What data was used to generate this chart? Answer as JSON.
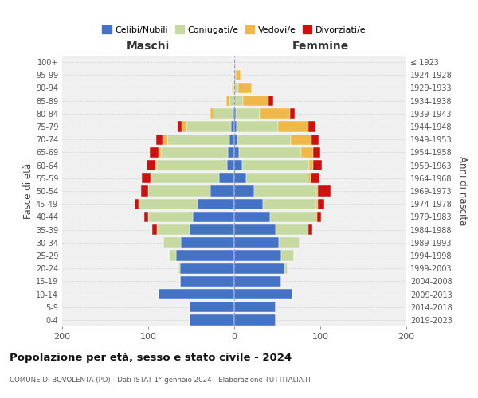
{
  "age_groups": [
    "0-4",
    "5-9",
    "10-14",
    "15-19",
    "20-24",
    "25-29",
    "30-34",
    "35-39",
    "40-44",
    "45-49",
    "50-54",
    "55-59",
    "60-64",
    "65-69",
    "70-74",
    "75-79",
    "80-84",
    "85-89",
    "90-94",
    "95-99",
    "100+"
  ],
  "birth_years": [
    "2019-2023",
    "2014-2018",
    "2009-2013",
    "2004-2008",
    "1999-2003",
    "1994-1998",
    "1989-1993",
    "1984-1988",
    "1979-1983",
    "1974-1978",
    "1969-1973",
    "1964-1968",
    "1959-1963",
    "1954-1958",
    "1949-1953",
    "1944-1948",
    "1939-1943",
    "1934-1938",
    "1929-1933",
    "1924-1928",
    "≤ 1923"
  ],
  "males": {
    "celibi": [
      52,
      52,
      88,
      63,
      63,
      68,
      62,
      52,
      48,
      43,
      28,
      18,
      8,
      7,
      6,
      4,
      2,
      1,
      0,
      0,
      0
    ],
    "coniugati": [
      0,
      0,
      0,
      0,
      2,
      8,
      20,
      38,
      52,
      68,
      72,
      78,
      82,
      78,
      72,
      52,
      22,
      5,
      2,
      0,
      0
    ],
    "vedovi": [
      0,
      0,
      0,
      0,
      0,
      0,
      0,
      0,
      0,
      0,
      0,
      1,
      2,
      3,
      5,
      5,
      4,
      3,
      1,
      0,
      0
    ],
    "divorziati": [
      0,
      0,
      0,
      0,
      0,
      0,
      0,
      5,
      5,
      5,
      8,
      10,
      10,
      10,
      8,
      5,
      0,
      0,
      0,
      0,
      0
    ]
  },
  "females": {
    "nubili": [
      48,
      48,
      68,
      55,
      58,
      55,
      52,
      48,
      42,
      33,
      23,
      14,
      9,
      6,
      4,
      3,
      2,
      0,
      0,
      0,
      0
    ],
    "coniugate": [
      0,
      0,
      0,
      0,
      4,
      14,
      24,
      38,
      52,
      62,
      72,
      72,
      78,
      72,
      62,
      48,
      28,
      10,
      5,
      2,
      0
    ],
    "vedove": [
      0,
      0,
      0,
      0,
      0,
      0,
      0,
      0,
      2,
      2,
      2,
      3,
      5,
      14,
      24,
      35,
      35,
      30,
      15,
      5,
      0
    ],
    "divorziate": [
      0,
      0,
      0,
      0,
      0,
      0,
      0,
      5,
      5,
      8,
      15,
      10,
      10,
      8,
      8,
      8,
      5,
      5,
      0,
      0,
      0
    ]
  },
  "colors": {
    "celibi_nubili": "#4472c4",
    "coniugati": "#c5d9a0",
    "vedovi": "#f0b848",
    "divorziati": "#cc1111"
  },
  "title": "Popolazione per età, sesso e stato civile - 2024",
  "subtitle": "COMUNE DI BOVOLENTA (PD) - Dati ISTAT 1° gennaio 2024 - Elaborazione TUTTITALIA.IT",
  "xlabel_left": "Maschi",
  "xlabel_right": "Femmine",
  "ylabel_left": "Fasce di età",
  "ylabel_right": "Anni di nascita",
  "xlim": 200,
  "bg_color": "#f0f0f0",
  "legend_labels": [
    "Celibi/Nubili",
    "Coniugati/e",
    "Vedovi/e",
    "Divorziati/e"
  ]
}
